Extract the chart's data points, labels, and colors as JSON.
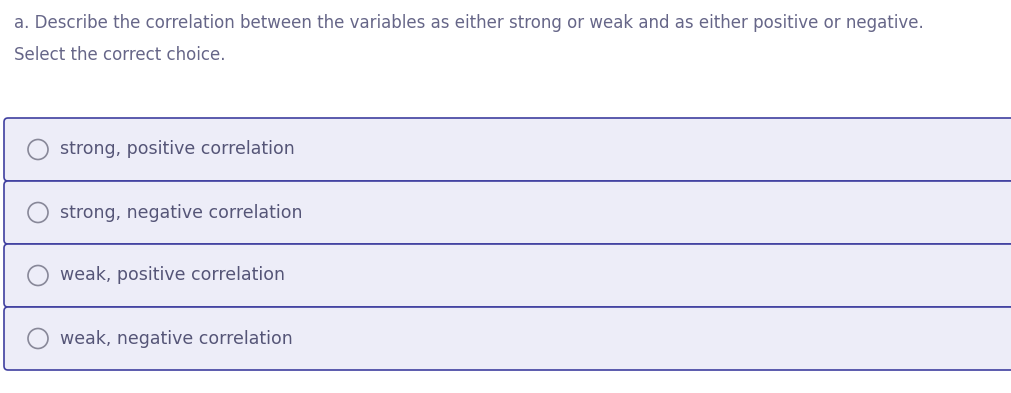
{
  "title_line1": "a. Describe the correlation between the variables as either strong or weak and as either positive or negative.",
  "title_line2": "Select the correct choice.",
  "choices": [
    "strong, positive correlation",
    "strong, negative correlation",
    "weak, positive correlation",
    "weak, negative correlation"
  ],
  "bg_color": "#ffffff",
  "box_fill_color": "#ededf8",
  "box_border_color": "#4040a0",
  "text_color": "#555577",
  "title_color": "#666688",
  "radio_border_color": "#888899",
  "radio_fill_color": "#ededf8",
  "font_size_title": 12.0,
  "font_size_choice": 12.5,
  "fig_width": 10.11,
  "fig_height": 3.93,
  "dpi": 100
}
